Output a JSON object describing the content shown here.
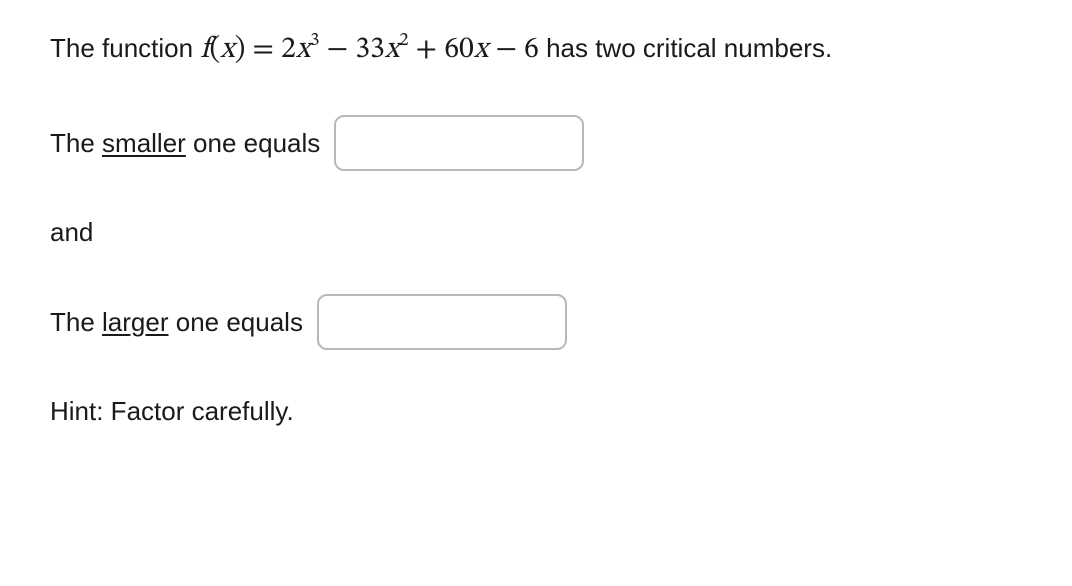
{
  "problem": {
    "intro_prefix": "The function ",
    "function_lhs_name": "f",
    "function_lhs_var": "x",
    "equals": " = ",
    "terms": {
      "t1_coef": "2",
      "t1_var": "x",
      "t1_exp": "3",
      "op1": " − ",
      "t2_coef": "33",
      "t2_var": "x",
      "t2_exp": "2",
      "op2": " + ",
      "t3_coef": "60",
      "t3_var": "x",
      "op3": " − ",
      "t4": "6"
    },
    "intro_suffix": " has two critical numbers."
  },
  "prompts": {
    "smaller_prefix": "The ",
    "smaller_word": "smaller",
    "smaller_suffix": " one equals",
    "and": "and",
    "larger_prefix": "The ",
    "larger_word": "larger",
    "larger_suffix": " one equals"
  },
  "hint": "Hint: Factor carefully.",
  "inputs": {
    "smaller_value": "",
    "larger_value": ""
  }
}
